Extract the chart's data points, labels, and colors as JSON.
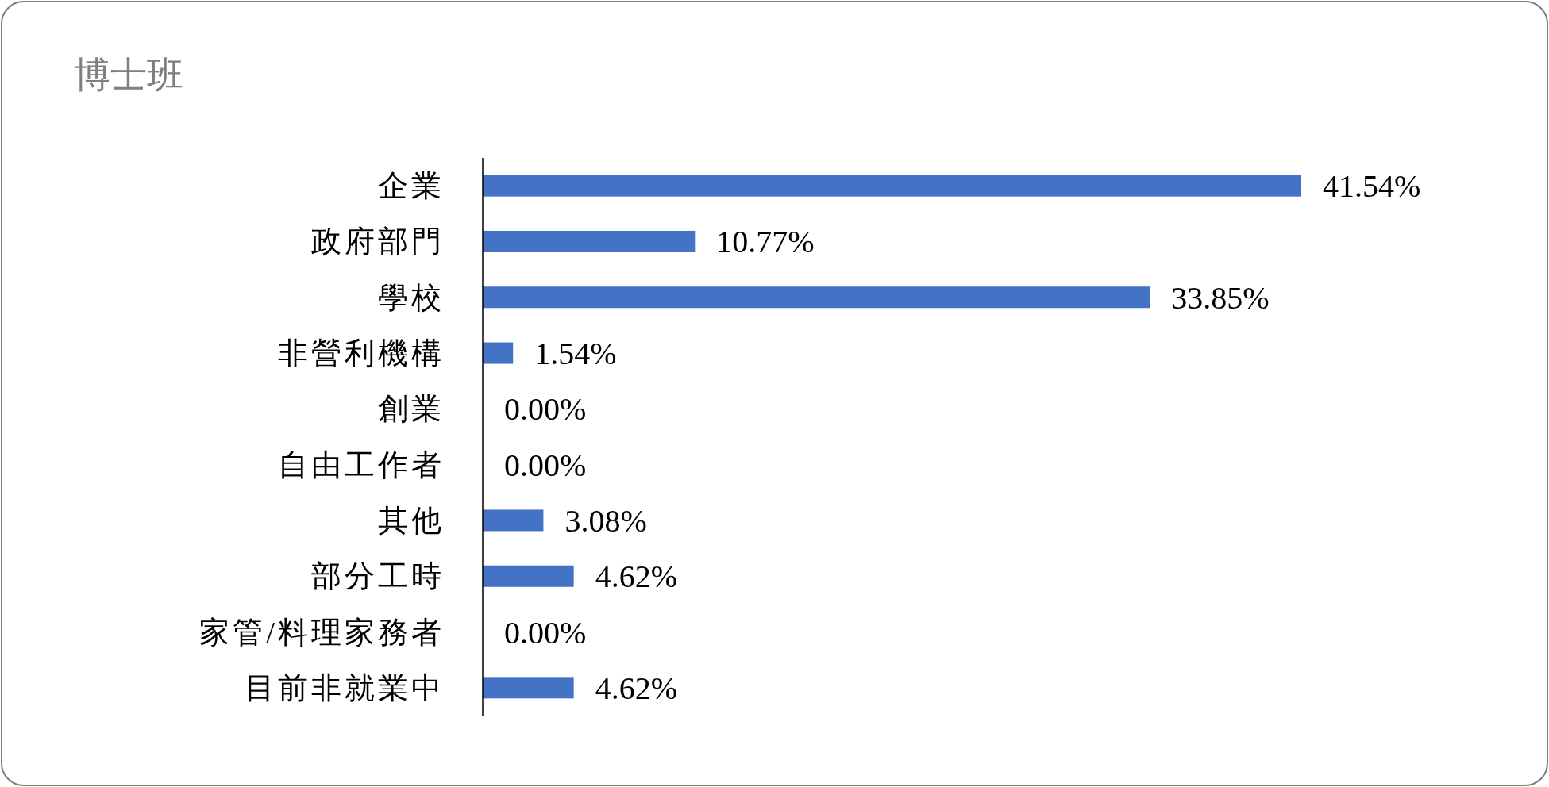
{
  "chart_data": {
    "type": "bar",
    "orientation": "horizontal",
    "title": "博士班",
    "categories": [
      "企業",
      "政府部門",
      "學校",
      "非營利機構",
      "創業",
      "自由工作者",
      "其他",
      "部分工時",
      "家管/料理家務者",
      "目前非就業中"
    ],
    "values": [
      41.54,
      10.77,
      33.85,
      1.54,
      0.0,
      0.0,
      3.08,
      4.62,
      0.0,
      4.62
    ],
    "value_labels": [
      "41.54%",
      "10.77%",
      "33.85%",
      "1.54%",
      "0.00%",
      "0.00%",
      "3.08%",
      "4.62%",
      "0.00%",
      "4.62%"
    ],
    "color": "#4472c4"
  }
}
